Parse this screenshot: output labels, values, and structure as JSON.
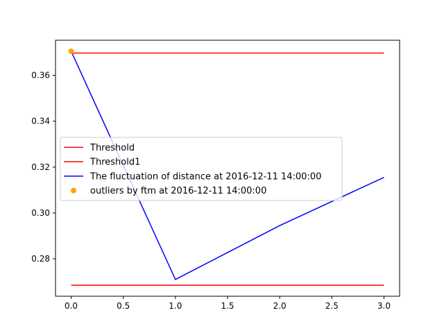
{
  "chart_data": {
    "type": "line",
    "title": "",
    "xlabel": "",
    "ylabel": "",
    "xlim": [
      -0.15,
      3.15
    ],
    "ylim": [
      0.2637,
      0.3753
    ],
    "xticks": [
      0.0,
      0.5,
      1.0,
      1.5,
      2.0,
      2.5,
      3.0
    ],
    "xtick_labels": [
      "0.0",
      "0.5",
      "1.0",
      "1.5",
      "2.0",
      "2.5",
      "3.0"
    ],
    "yticks": [
      0.28,
      0.3,
      0.32,
      0.34,
      0.36
    ],
    "ytick_labels": [
      "0.28",
      "0.30",
      "0.32",
      "0.34",
      "0.36"
    ],
    "grid": false,
    "legend_position": "center-left",
    "series": [
      {
        "name": "Threshold",
        "kind": "line",
        "color": "#ff0000",
        "x": [
          0,
          3
        ],
        "y": [
          0.3697,
          0.3697
        ]
      },
      {
        "name": "Threshold1",
        "kind": "line",
        "color": "#ff0000",
        "x": [
          0,
          3
        ],
        "y": [
          0.2685,
          0.2685
        ]
      },
      {
        "name": "The fluctuation of distance at 2016-12-11 14:00:00",
        "kind": "line",
        "color": "#0000ff",
        "x": [
          0,
          1,
          2,
          3
        ],
        "y": [
          0.3705,
          0.271,
          0.2945,
          0.3155
        ]
      },
      {
        "name": "outliers by ftm at 2016-12-11 14:00:00",
        "kind": "scatter",
        "color": "#ffa500",
        "x": [
          0
        ],
        "y": [
          0.3705
        ]
      }
    ]
  }
}
